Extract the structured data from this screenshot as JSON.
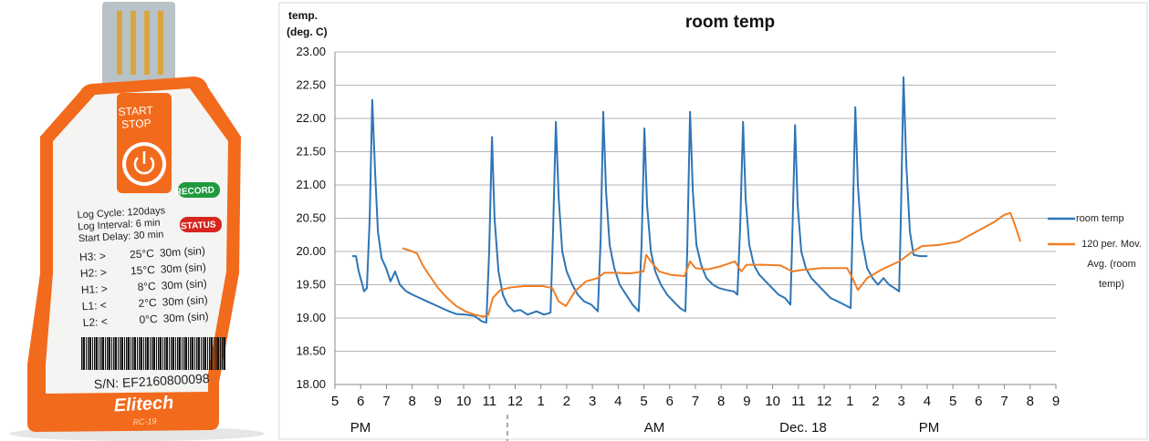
{
  "device": {
    "button": [
      "START",
      "STOP"
    ],
    "record": "RECORD",
    "status": "STATUS",
    "info": [
      "Log Cycle: 120days",
      "Log Interval: 6 min",
      "Start Delay: 30 min"
    ],
    "alarms": [
      [
        "H3: >",
        "25°C",
        "30m (sin)"
      ],
      [
        "H2: >",
        "15°C",
        "30m (sin)"
      ],
      [
        "H1: >",
        "8°C",
        "30m (sin)"
      ],
      [
        "L1: <",
        "2°C",
        "30m (sin)"
      ],
      [
        "L2: <",
        "0°C",
        "30m (sin)"
      ]
    ],
    "serial": "S/N: EF2160800098",
    "brand": "Elitech",
    "model": "RC-19"
  },
  "chart_data": {
    "type": "line",
    "title": "room temp",
    "ylabel": [
      "temp.",
      "(deg. C)"
    ],
    "period_labels": [
      "PM",
      "AM",
      "Dec. 18",
      "PM"
    ],
    "grid": true,
    "legend": "right",
    "xlim": [
      17,
      45
    ],
    "xticks": [
      {
        "value": 17,
        "label": "5"
      },
      {
        "value": 18,
        "label": "6"
      },
      {
        "value": 19,
        "label": "7"
      },
      {
        "value": 20,
        "label": "8"
      },
      {
        "value": 21,
        "label": "9"
      },
      {
        "value": 22,
        "label": "10"
      },
      {
        "value": 23,
        "label": "11"
      },
      {
        "value": 24,
        "label": "12"
      },
      {
        "value": 25,
        "label": "1"
      },
      {
        "value": 26,
        "label": "2"
      },
      {
        "value": 27,
        "label": "3"
      },
      {
        "value": 28,
        "label": "4"
      },
      {
        "value": 29,
        "label": "5"
      },
      {
        "value": 30,
        "label": "6"
      },
      {
        "value": 31,
        "label": "7"
      },
      {
        "value": 32,
        "label": "8"
      },
      {
        "value": 33,
        "label": "9"
      },
      {
        "value": 34,
        "label": "10"
      },
      {
        "value": 35,
        "label": "11"
      },
      {
        "value": 36,
        "label": "12"
      },
      {
        "value": 37,
        "label": "1"
      },
      {
        "value": 38,
        "label": "2"
      },
      {
        "value": 39,
        "label": "3"
      },
      {
        "value": 40,
        "label": "4"
      },
      {
        "value": 41,
        "label": "5"
      },
      {
        "value": 42,
        "label": "6"
      },
      {
        "value": 43,
        "label": "7"
      },
      {
        "value": 44,
        "label": "8"
      },
      {
        "value": 45,
        "label": "9"
      }
    ],
    "ylim": [
      18,
      23
    ],
    "yticks": [
      {
        "value": 18,
        "label": "18.00"
      },
      {
        "value": 18.5,
        "label": "18.50"
      },
      {
        "value": 19,
        "label": "19.00"
      },
      {
        "value": 19.5,
        "label": "19.50"
      },
      {
        "value": 20,
        "label": "20.00"
      },
      {
        "value": 20.5,
        "label": "20.50"
      },
      {
        "value": 21,
        "label": "21.00"
      },
      {
        "value": 21.5,
        "label": "21.50"
      },
      {
        "value": 22,
        "label": "22.00"
      },
      {
        "value": 22.5,
        "label": "22.50"
      },
      {
        "value": 23,
        "label": "23.00"
      }
    ],
    "series": [
      {
        "name": "room temp",
        "color": "#2e75b6",
        "x": [
          17.67,
          17.82,
          17.92,
          18.03,
          18.13,
          18.24,
          18.35,
          18.45,
          18.56,
          18.67,
          18.81,
          18.99,
          19.16,
          19.34,
          19.52,
          19.77,
          20.01,
          20.3,
          20.58,
          20.86,
          21.15,
          21.43,
          21.71,
          22.07,
          22.42,
          22.71,
          22.88,
          22.99,
          23.1,
          23.2,
          23.35,
          23.52,
          23.7,
          23.95,
          24.2,
          24.48,
          24.83,
          25.12,
          25.37,
          25.47,
          25.58,
          25.69,
          25.83,
          26.0,
          26.22,
          26.43,
          26.68,
          26.96,
          27.21,
          27.32,
          27.42,
          27.53,
          27.67,
          27.85,
          28.06,
          28.31,
          28.56,
          28.8,
          28.91,
          29.02,
          29.12,
          29.27,
          29.44,
          29.66,
          29.9,
          30.15,
          30.4,
          30.61,
          30.68,
          30.79,
          30.9,
          31.04,
          31.22,
          31.43,
          31.68,
          31.92,
          32.21,
          32.49,
          32.63,
          32.74,
          32.85,
          32.95,
          33.09,
          33.27,
          33.48,
          33.73,
          33.98,
          34.23,
          34.48,
          34.69,
          34.76,
          34.87,
          34.97,
          35.11,
          35.29,
          35.5,
          35.75,
          36.0,
          36.25,
          36.53,
          36.78,
          37.03,
          37.1,
          37.21,
          37.31,
          37.45,
          37.67,
          37.88,
          38.09,
          38.3,
          38.52,
          38.73,
          38.91,
          38.98,
          39.08,
          39.19,
          39.33,
          39.47,
          39.72,
          40.01
        ],
        "values": [
          19.93,
          19.93,
          19.7,
          19.55,
          19.4,
          19.45,
          20.5,
          22.28,
          21.2,
          20.3,
          19.9,
          19.75,
          19.55,
          19.7,
          19.5,
          19.4,
          19.35,
          19.3,
          19.25,
          19.2,
          19.15,
          19.1,
          19.06,
          19.05,
          19.03,
          18.95,
          18.93,
          20.0,
          21.72,
          20.5,
          19.7,
          19.35,
          19.2,
          19.1,
          19.12,
          19.05,
          19.1,
          19.05,
          19.08,
          20.3,
          21.95,
          20.8,
          20.0,
          19.7,
          19.5,
          19.35,
          19.25,
          19.2,
          19.1,
          20.2,
          22.1,
          20.9,
          20.1,
          19.75,
          19.5,
          19.35,
          19.2,
          19.1,
          20.1,
          21.85,
          20.7,
          20.0,
          19.7,
          19.5,
          19.35,
          19.25,
          19.15,
          19.1,
          20.0,
          22.1,
          20.9,
          20.1,
          19.8,
          19.6,
          19.5,
          19.45,
          19.42,
          19.4,
          19.35,
          20.4,
          21.95,
          20.8,
          20.1,
          19.8,
          19.65,
          19.55,
          19.45,
          19.35,
          19.3,
          19.2,
          20.2,
          21.9,
          20.7,
          20.0,
          19.75,
          19.6,
          19.5,
          19.4,
          19.3,
          19.25,
          19.2,
          19.15,
          20.3,
          22.17,
          21.0,
          20.2,
          19.75,
          19.6,
          19.5,
          19.6,
          19.5,
          19.45,
          19.4,
          20.5,
          22.62,
          21.3,
          20.3,
          19.95,
          19.93,
          19.93
        ]
      },
      {
        "name": "120 per. Mov. Avg. (room temp)",
        "color": "#f07d24",
        "x": [
          19.62,
          20.01,
          20.19,
          20.4,
          20.65,
          21.01,
          21.36,
          21.71,
          22.07,
          22.42,
          22.78,
          22.96,
          23.13,
          23.42,
          23.84,
          24.37,
          25.08,
          25.44,
          25.69,
          25.97,
          26.32,
          26.75,
          27.21,
          27.46,
          27.92,
          28.45,
          28.98,
          29.09,
          29.27,
          29.59,
          30.05,
          30.58,
          30.79,
          31.0,
          31.46,
          32.0,
          32.53,
          32.78,
          32.99,
          33.59,
          34.3,
          34.76,
          35.11,
          35.89,
          36.89,
          37.1,
          37.31,
          37.67,
          38.2,
          38.91,
          39.44,
          39.79,
          40.5,
          41.21,
          41.92,
          42.63,
          42.99,
          43.23,
          43.41,
          43.62
        ],
        "values": [
          20.05,
          20.0,
          19.97,
          19.8,
          19.65,
          19.45,
          19.3,
          19.18,
          19.1,
          19.05,
          19.02,
          19.05,
          19.3,
          19.42,
          19.46,
          19.48,
          19.48,
          19.45,
          19.25,
          19.18,
          19.4,
          19.55,
          19.6,
          19.68,
          19.68,
          19.67,
          19.7,
          19.95,
          19.85,
          19.7,
          19.65,
          19.63,
          19.85,
          19.75,
          19.73,
          19.78,
          19.85,
          19.7,
          19.8,
          19.8,
          19.79,
          19.7,
          19.72,
          19.75,
          19.75,
          19.6,
          19.42,
          19.6,
          19.72,
          19.85,
          20.0,
          20.08,
          20.1,
          20.15,
          20.3,
          20.45,
          20.55,
          20.58,
          20.4,
          20.15
        ]
      }
    ]
  }
}
